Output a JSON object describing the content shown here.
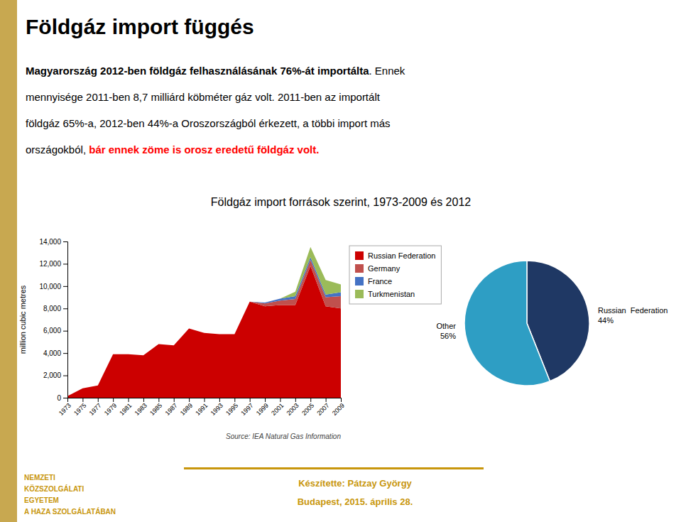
{
  "title": "Földgáz import függés",
  "subtitle_lines": [
    [
      "Magyarország 2012-ben földgáz felhasználásának 76%-át importálta",
      ". Ennek"
    ],
    [
      "mennyisége 2011-ben 8,7 milliárd köbméter gáz volt. 2011-ben az importált"
    ],
    [
      "földgáz 65%-a, 2012-ben 44%-a Oroszországból érkezett, a többi import más"
    ],
    [
      "országokból, ",
      "bár ennek zöme is orosz eredetű földgáz volt."
    ]
  ],
  "charts_title": "Földgáz import források szerint, 1973-2009 és 2012",
  "source": "Source: IEA Natural Gas Information",
  "footer_left": [
    "NEMZETI",
    "KÖZSZOLGÁLATI",
    "EGYETEM",
    "A HAZA SZOLGÁLATÁBAN"
  ],
  "footer_right": [
    "Készítette: Pátzay György",
    "Budapest, 2015. április 28."
  ],
  "chart_data": [
    {
      "type": "area",
      "stacked": true,
      "x": [
        1973,
        1975,
        1977,
        1979,
        1981,
        1983,
        1985,
        1987,
        1989,
        1991,
        1993,
        1995,
        1997,
        1999,
        2001,
        2003,
        2005,
        2007,
        2009
      ],
      "series": [
        {
          "name": "Russian Federation",
          "color": "#CC0000",
          "values": [
            150,
            850,
            1100,
            3900,
            3900,
            3800,
            4800,
            4700,
            6200,
            5800,
            5700,
            5700,
            8600,
            8200,
            8300,
            8300,
            11800,
            8200,
            8000
          ]
        },
        {
          "name": "Germany",
          "color": "#C0504D",
          "values": [
            0,
            0,
            0,
            0,
            0,
            0,
            0,
            0,
            0,
            0,
            0,
            0,
            0,
            250,
            400,
            550,
            550,
            800,
            1100
          ]
        },
        {
          "name": "France",
          "color": "#4472C4",
          "values": [
            0,
            0,
            0,
            0,
            0,
            0,
            0,
            0,
            0,
            0,
            0,
            0,
            0,
            80,
            180,
            250,
            250,
            250,
            350
          ]
        },
        {
          "name": "Turkmenistan",
          "color": "#9BBB59",
          "values": [
            0,
            0,
            0,
            0,
            0,
            0,
            0,
            0,
            0,
            0,
            0,
            0,
            0,
            0,
            0,
            400,
            900,
            1300,
            700
          ]
        }
      ],
      "y_label": "million cubic metres",
      "xlim": [
        1973,
        2009
      ],
      "xticks": [
        1973,
        1975,
        1977,
        1979,
        1981,
        1983,
        1985,
        1987,
        1989,
        1991,
        1993,
        1995,
        1997,
        1999,
        2001,
        2003,
        2005,
        2007,
        2009
      ],
      "ylim": [
        0,
        14000
      ],
      "yticks": [
        0,
        {
          "value": 2000,
          "label": "2,000"
        },
        {
          "value": 4000,
          "label": "4,000"
        },
        {
          "value": 6000,
          "label": "6,000"
        },
        {
          "value": 8000,
          "label": "8,000"
        },
        {
          "value": 10000,
          "label": "10,000"
        },
        {
          "value": 12000,
          "label": "12,000"
        },
        {
          "value": 14000,
          "label": "14,000"
        }
      ],
      "grid": false,
      "legend": "right"
    },
    {
      "type": "pie",
      "categories": [
        "Russian  Federation",
        "Other"
      ],
      "values": [
        44,
        56
      ],
      "value_labels": [
        "44%",
        "56%"
      ],
      "colors": [
        "#1F3864",
        "#2E9EC4"
      ],
      "data_labels": true
    }
  ]
}
